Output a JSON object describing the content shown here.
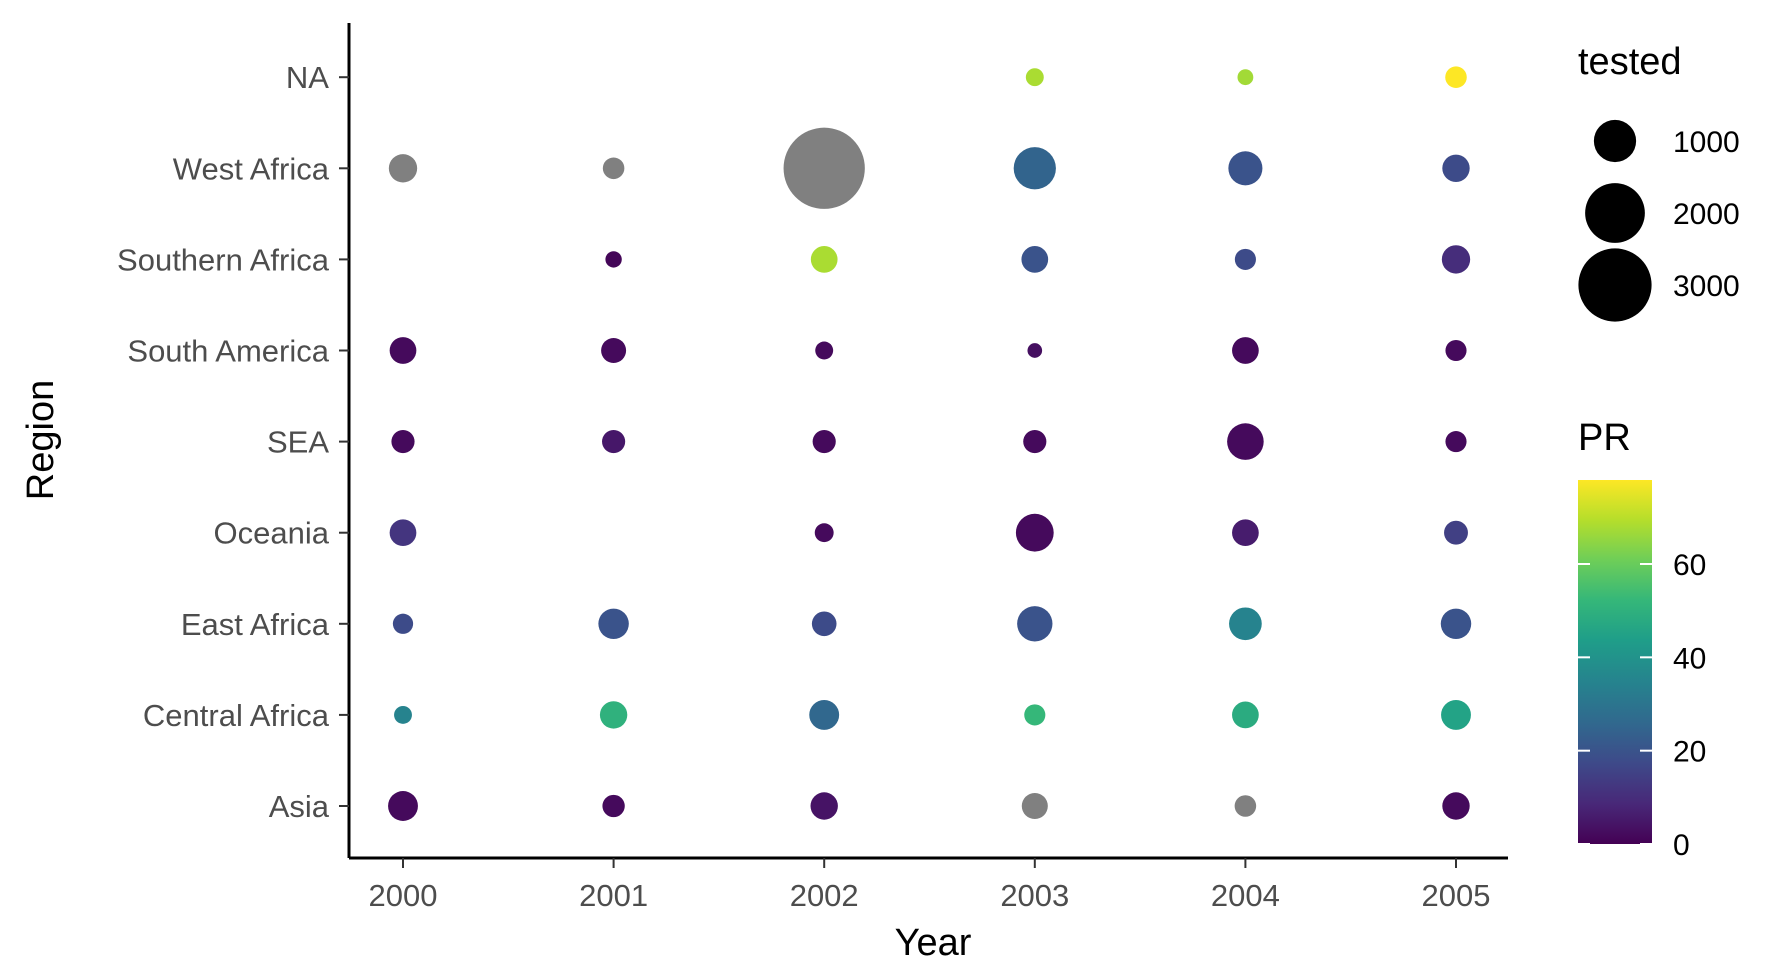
{
  "chart_data": {
    "type": "scatter",
    "title": "",
    "xlabel": "Year",
    "ylabel": "Region",
    "x_categories": [
      "2000",
      "2001",
      "2002",
      "2003",
      "2004",
      "2005"
    ],
    "y_categories": [
      "Asia",
      "Central Africa",
      "East Africa",
      "Oceania",
      "SEA",
      "South America",
      "Southern Africa",
      "West Africa",
      "NA"
    ],
    "grid": false,
    "na_color": "#808080",
    "points": [
      {
        "year": "2000",
        "region": "West Africa",
        "tested": 450,
        "pr": null
      },
      {
        "year": "2001",
        "region": "West Africa",
        "tested": 260,
        "pr": null
      },
      {
        "year": "2002",
        "region": "West Africa",
        "tested": 3700,
        "pr": null
      },
      {
        "year": "2003",
        "region": "West Africa",
        "tested": 1000,
        "pr": 25
      },
      {
        "year": "2004",
        "region": "West Africa",
        "tested": 650,
        "pr": 20
      },
      {
        "year": "2005",
        "region": "West Africa",
        "tested": 420,
        "pr": 18
      },
      {
        "year": "2003",
        "region": "NA",
        "tested": 180,
        "pr": 68
      },
      {
        "year": "2004",
        "region": "NA",
        "tested": 140,
        "pr": 67
      },
      {
        "year": "2005",
        "region": "NA",
        "tested": 260,
        "pr": 78
      },
      {
        "year": "2001",
        "region": "Southern Africa",
        "tested": 150,
        "pr": 1
      },
      {
        "year": "2002",
        "region": "Southern Africa",
        "tested": 400,
        "pr": 68
      },
      {
        "year": "2003",
        "region": "Southern Africa",
        "tested": 400,
        "pr": 20
      },
      {
        "year": "2004",
        "region": "Southern Africa",
        "tested": 250,
        "pr": 18
      },
      {
        "year": "2005",
        "region": "Southern Africa",
        "tested": 450,
        "pr": 10
      },
      {
        "year": "2000",
        "region": "South America",
        "tested": 400,
        "pr": 2
      },
      {
        "year": "2001",
        "region": "South America",
        "tested": 350,
        "pr": 2
      },
      {
        "year": "2002",
        "region": "South America",
        "tested": 180,
        "pr": 2
      },
      {
        "year": "2003",
        "region": "South America",
        "tested": 120,
        "pr": 3
      },
      {
        "year": "2004",
        "region": "South America",
        "tested": 400,
        "pr": 2
      },
      {
        "year": "2005",
        "region": "South America",
        "tested": 250,
        "pr": 2
      },
      {
        "year": "2000",
        "region": "SEA",
        "tested": 300,
        "pr": 2
      },
      {
        "year": "2001",
        "region": "SEA",
        "tested": 300,
        "pr": 5
      },
      {
        "year": "2002",
        "region": "SEA",
        "tested": 300,
        "pr": 2
      },
      {
        "year": "2003",
        "region": "SEA",
        "tested": 300,
        "pr": 2
      },
      {
        "year": "2004",
        "region": "SEA",
        "tested": 750,
        "pr": 2
      },
      {
        "year": "2005",
        "region": "SEA",
        "tested": 250,
        "pr": 2
      },
      {
        "year": "2000",
        "region": "Oceania",
        "tested": 400,
        "pr": 12
      },
      {
        "year": "2002",
        "region": "Oceania",
        "tested": 200,
        "pr": 2
      },
      {
        "year": "2003",
        "region": "Oceania",
        "tested": 800,
        "pr": 2
      },
      {
        "year": "2004",
        "region": "Oceania",
        "tested": 400,
        "pr": 6
      },
      {
        "year": "2005",
        "region": "Oceania",
        "tested": 320,
        "pr": 15
      },
      {
        "year": "2000",
        "region": "East Africa",
        "tested": 230,
        "pr": 18
      },
      {
        "year": "2001",
        "region": "East Africa",
        "tested": 520,
        "pr": 20
      },
      {
        "year": "2002",
        "region": "East Africa",
        "tested": 340,
        "pr": 18
      },
      {
        "year": "2003",
        "region": "East Africa",
        "tested": 700,
        "pr": 20
      },
      {
        "year": "2004",
        "region": "East Africa",
        "tested": 600,
        "pr": 35
      },
      {
        "year": "2005",
        "region": "East Africa",
        "tested": 520,
        "pr": 20
      },
      {
        "year": "2000",
        "region": "Central Africa",
        "tested": 180,
        "pr": 35
      },
      {
        "year": "2001",
        "region": "Central Africa",
        "tested": 420,
        "pr": 50
      },
      {
        "year": "2002",
        "region": "Central Africa",
        "tested": 500,
        "pr": 26
      },
      {
        "year": "2003",
        "region": "Central Africa",
        "tested": 250,
        "pr": 52
      },
      {
        "year": "2004",
        "region": "Central Africa",
        "tested": 400,
        "pr": 48
      },
      {
        "year": "2005",
        "region": "Central Africa",
        "tested": 500,
        "pr": 45
      },
      {
        "year": "2000",
        "region": "Asia",
        "tested": 500,
        "pr": 2
      },
      {
        "year": "2001",
        "region": "Asia",
        "tested": 280,
        "pr": 2
      },
      {
        "year": "2002",
        "region": "Asia",
        "tested": 420,
        "pr": 4
      },
      {
        "year": "2003",
        "region": "Asia",
        "tested": 380,
        "pr": null
      },
      {
        "year": "2004",
        "region": "Asia",
        "tested": 260,
        "pr": null
      },
      {
        "year": "2005",
        "region": "Asia",
        "tested": 420,
        "pr": 2
      }
    ],
    "legend_size": {
      "title": "tested",
      "entries": [
        {
          "label": "1000",
          "value": 1000
        },
        {
          "label": "2000",
          "value": 2000
        },
        {
          "label": "3000",
          "value": 3000
        }
      ]
    },
    "legend_color": {
      "title": "PR",
      "range": [
        0,
        78
      ],
      "ticks": [
        {
          "label": "0",
          "value": 0
        },
        {
          "label": "20",
          "value": 20
        },
        {
          "label": "40",
          "value": 40
        },
        {
          "label": "60",
          "value": 60
        }
      ],
      "palette": [
        "#440154",
        "#482878",
        "#3e4989",
        "#31688e",
        "#26828e",
        "#1f9e89",
        "#35b779",
        "#6ece58",
        "#b5de2b",
        "#fde725"
      ]
    }
  }
}
